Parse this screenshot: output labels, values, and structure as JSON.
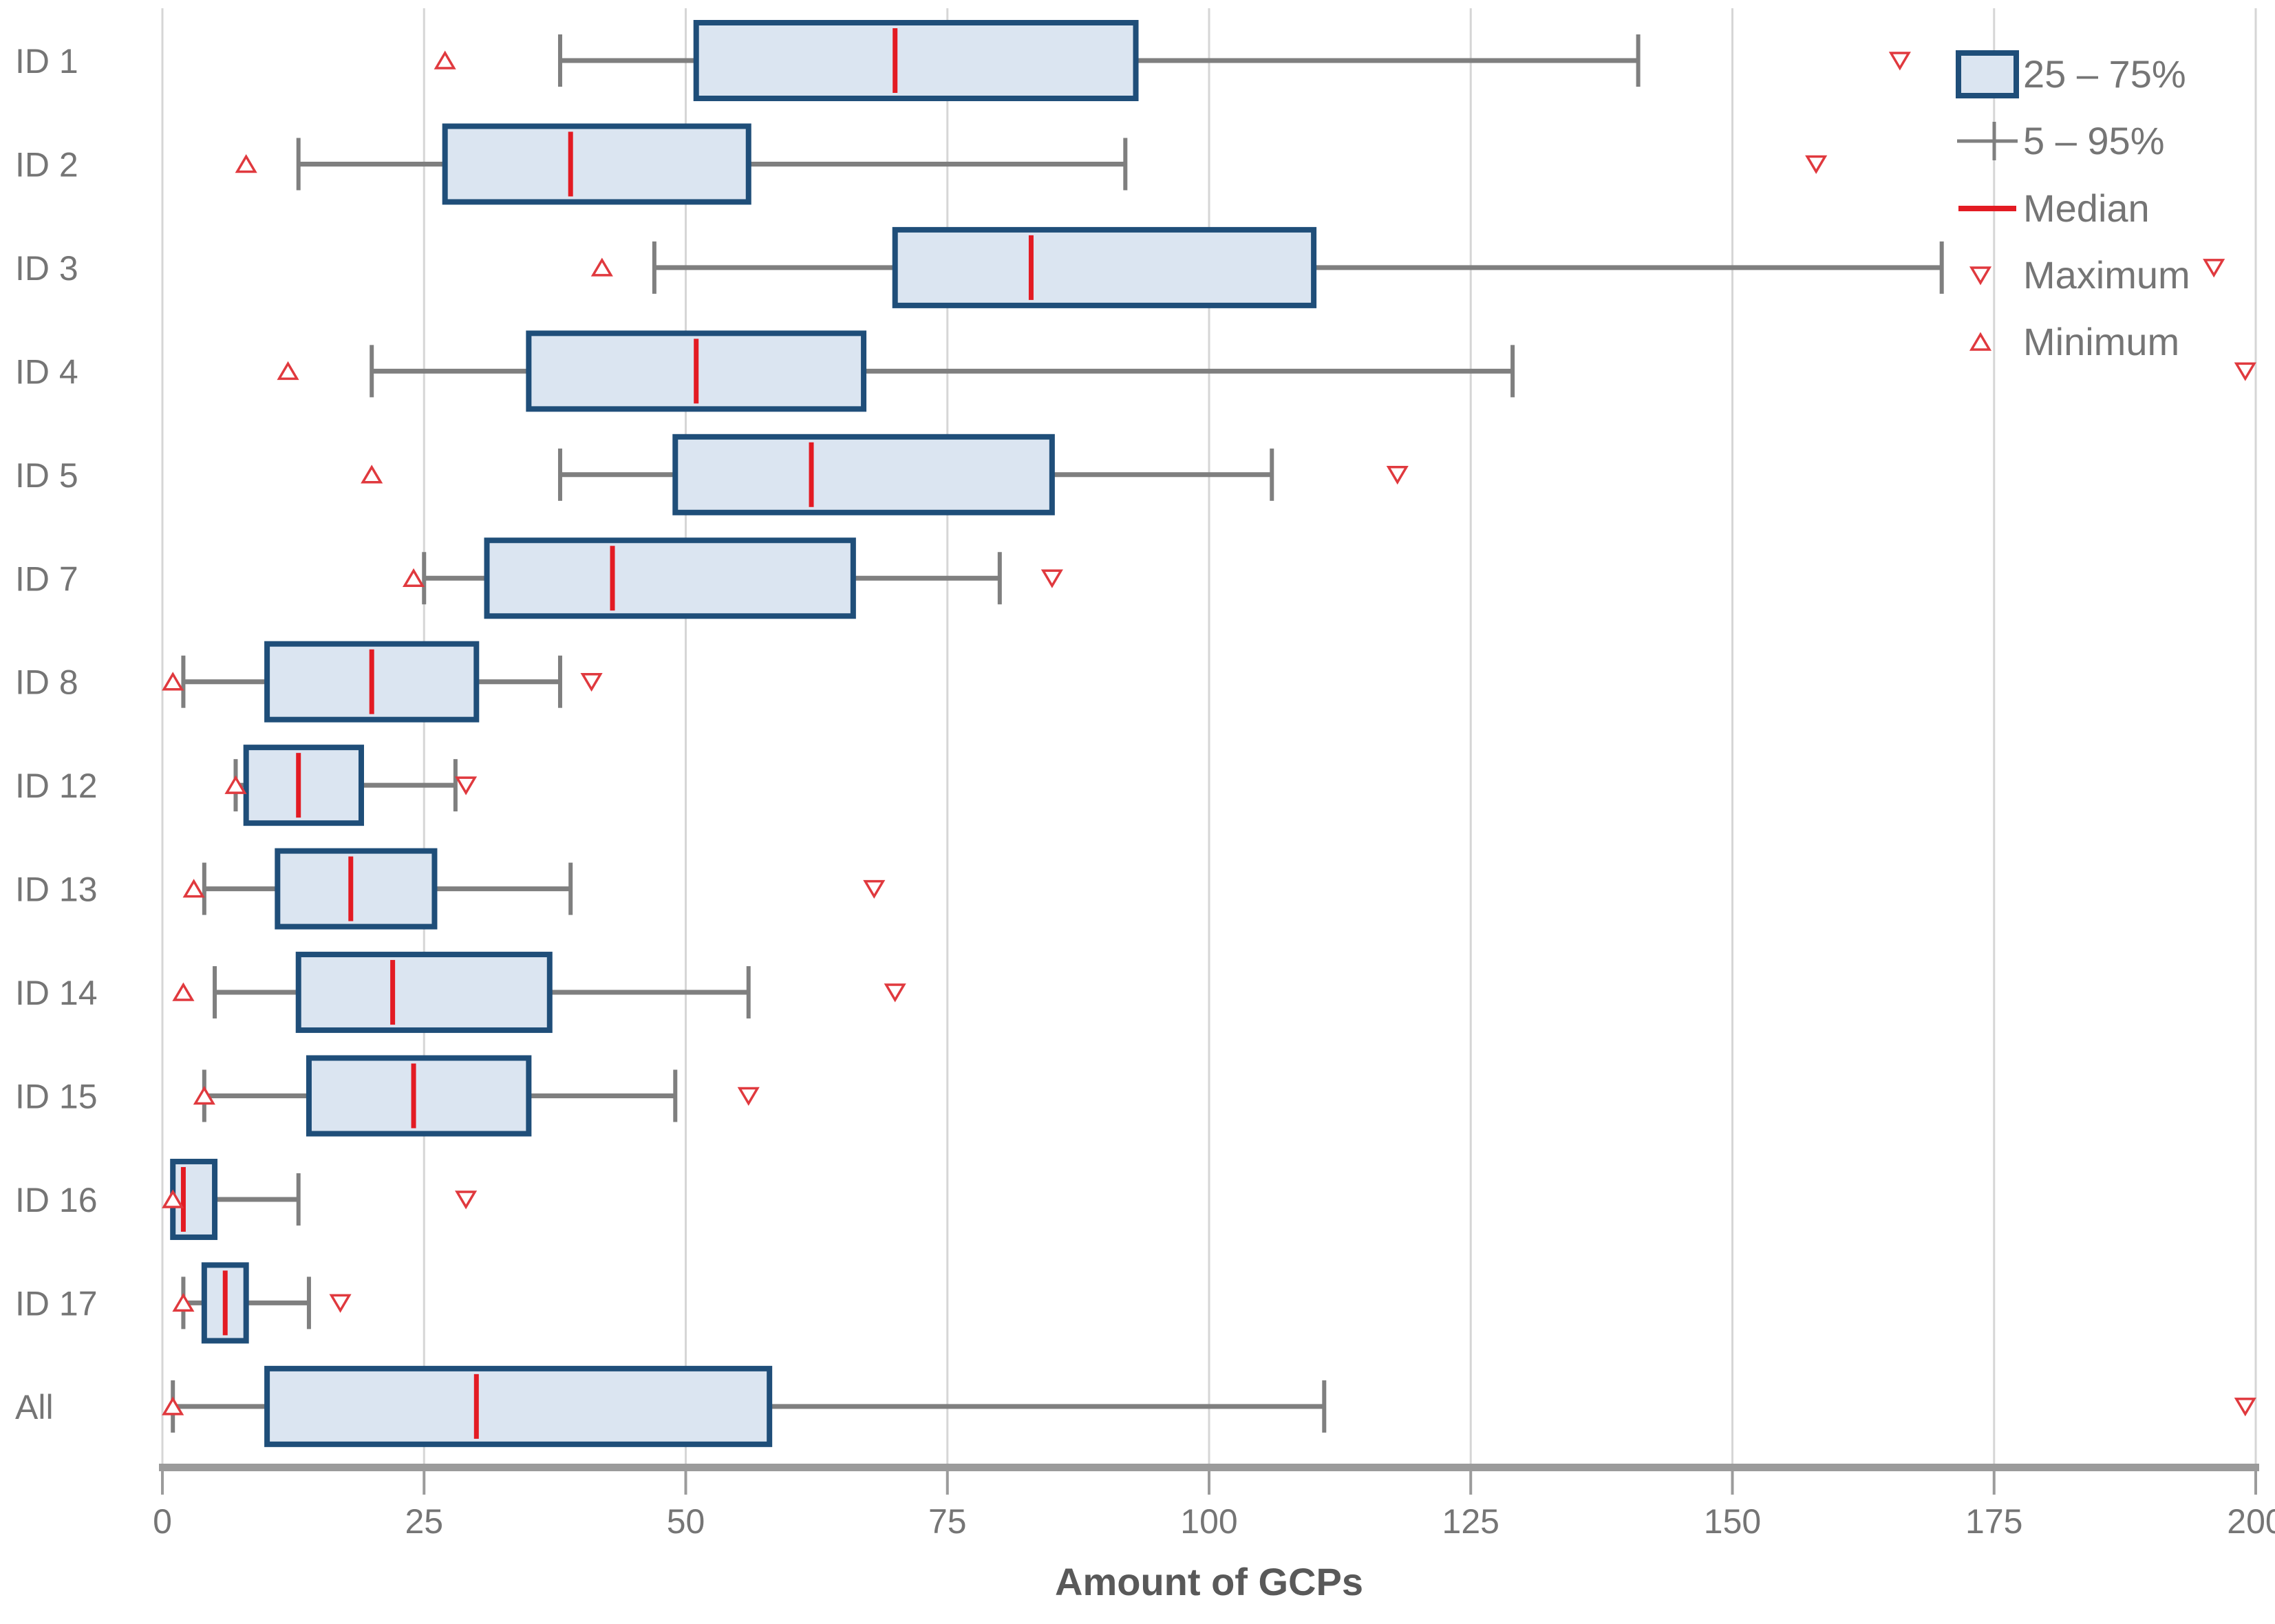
{
  "chart_data": {
    "type": "boxplot-horizontal",
    "xlabel": "Amount of GCPs",
    "xlim": [
      0,
      200
    ],
    "x_ticks": [
      0,
      25,
      50,
      75,
      100,
      125,
      150,
      175,
      200
    ],
    "grid": "vertical-on",
    "legend_position": "top-right",
    "categories": [
      "ID 1",
      "ID 2",
      "ID 3",
      "ID 4",
      "ID 5",
      "ID 7",
      "ID 8",
      "ID 12",
      "ID 13",
      "ID 14",
      "ID 15",
      "ID 16",
      "ID 17",
      "All"
    ],
    "rows": [
      {
        "label": "ID 1",
        "min": 27,
        "p5": 38,
        "q1": 51,
        "median": 70,
        "q3": 93,
        "p95": 141,
        "max": 166
      },
      {
        "label": "ID 2",
        "min": 8,
        "p5": 13,
        "q1": 27,
        "median": 39,
        "q3": 56,
        "p95": 92,
        "max": 158
      },
      {
        "label": "ID 3",
        "min": 42,
        "p5": 47,
        "q1": 70,
        "median": 83,
        "q3": 110,
        "p95": 170,
        "max": 196
      },
      {
        "label": "ID 4",
        "min": 12,
        "p5": 20,
        "q1": 35,
        "median": 51,
        "q3": 67,
        "p95": 129,
        "max": 199
      },
      {
        "label": "ID 5",
        "min": 20,
        "p5": 38,
        "q1": 49,
        "median": 62,
        "q3": 85,
        "p95": 106,
        "max": 118
      },
      {
        "label": "ID 7",
        "min": 24,
        "p5": 25,
        "q1": 31,
        "median": 43,
        "q3": 66,
        "p95": 80,
        "max": 85
      },
      {
        "label": "ID 8",
        "min": 1,
        "p5": 2,
        "q1": 10,
        "median": 20,
        "q3": 30,
        "p95": 38,
        "max": 41
      },
      {
        "label": "ID 12",
        "min": 7,
        "p5": 7,
        "q1": 8,
        "median": 13,
        "q3": 19,
        "p95": 28,
        "max": 29
      },
      {
        "label": "ID 13",
        "min": 3,
        "p5": 4,
        "q1": 11,
        "median": 18,
        "q3": 26,
        "p95": 39,
        "max": 68
      },
      {
        "label": "ID 14",
        "min": 2,
        "p5": 5,
        "q1": 13,
        "median": 22,
        "q3": 37,
        "p95": 56,
        "max": 70
      },
      {
        "label": "ID 15",
        "min": 4,
        "p5": 4,
        "q1": 14,
        "median": 24,
        "q3": 35,
        "p95": 49,
        "max": 56
      },
      {
        "label": "ID 16",
        "min": 1,
        "p5": 1,
        "q1": 1,
        "median": 2,
        "q3": 5,
        "p95": 13,
        "max": 29
      },
      {
        "label": "ID 17",
        "min": 2,
        "p5": 2,
        "q1": 4,
        "median": 6,
        "q3": 8,
        "p95": 14,
        "max": 17
      },
      {
        "label": "All",
        "min": 1,
        "p5": 1,
        "q1": 10,
        "median": 30,
        "q3": 58,
        "p95": 111,
        "max": 199
      }
    ],
    "legend": [
      {
        "symbol": "iqr-box",
        "label": "25 – 75%"
      },
      {
        "symbol": "whisker-line",
        "label": "5 – 95%"
      },
      {
        "symbol": "median-line",
        "label": "Median"
      },
      {
        "symbol": "max-triangle",
        "label": "Maximum"
      },
      {
        "symbol": "min-triangle",
        "label": "Minimum"
      }
    ],
    "colors": {
      "box_fill": "#dbe5f1",
      "box_border": "#1f4e79",
      "median": "#e31b23",
      "whisker": "#7f7f7f",
      "marker": "#e0393e",
      "marker_fill": "#ffffff",
      "gridline": "#d6d6d6",
      "axis": "#9b9b9b",
      "label_text": "#757575",
      "title_text": "#595959"
    }
  }
}
